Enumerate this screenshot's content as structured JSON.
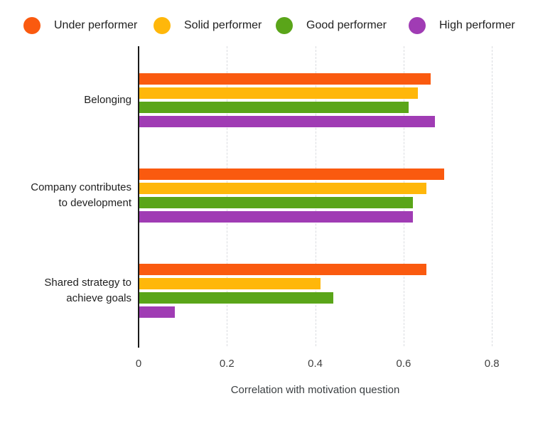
{
  "legend": {
    "items": [
      {
        "label": "Under performer",
        "color": "#FA5A0F"
      },
      {
        "label": "Solid performer",
        "color": "#FFB70A"
      },
      {
        "label": "Good performer",
        "color": "#5AA519"
      },
      {
        "label": "High performer",
        "color": "#A03CB4"
      }
    ]
  },
  "chart_data": {
    "type": "bar",
    "orientation": "horizontal",
    "title": "",
    "xlabel": "Correlation with motivation question",
    "ylabel": "",
    "xlim": [
      0,
      0.8
    ],
    "grid": "vertical dashed",
    "legend_position": "top",
    "gridline_color": "#dadce0",
    "axis_line_color": "#1a1a1a",
    "categories": [
      "Belonging",
      "Company contributes to development",
      "Shared strategy to achieve goals"
    ],
    "category_label_lines": [
      [
        "Belonging"
      ],
      [
        "Company contributes",
        "to development"
      ],
      [
        "Shared strategy to",
        "achieve goals"
      ]
    ],
    "x_ticks": [
      {
        "label": "0",
        "value": 0.0
      },
      {
        "label": "0.2",
        "value": 0.2
      },
      {
        "label": "0.4",
        "value": 0.4
      },
      {
        "label": "0.6",
        "value": 0.6
      },
      {
        "label": "0.8",
        "value": 0.8
      }
    ],
    "series": [
      {
        "name": "Under performer",
        "color": "#FA5A0F",
        "values": [
          0.66,
          0.69,
          0.65
        ]
      },
      {
        "name": "Solid performer",
        "color": "#FFB70A",
        "values": [
          0.63,
          0.65,
          0.41
        ]
      },
      {
        "name": "Good performer",
        "color": "#5AA519",
        "values": [
          0.61,
          0.62,
          0.44
        ]
      },
      {
        "name": "High performer",
        "color": "#A03CB4",
        "values": [
          0.67,
          0.62,
          0.08
        ]
      }
    ]
  }
}
